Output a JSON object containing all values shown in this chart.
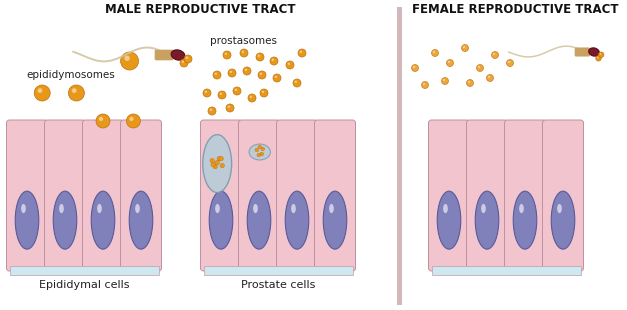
{
  "title_left": "MALE REPRODUCTIVE TRACT",
  "title_right": "FEMALE REPRODUCTIVE TRACT",
  "label_left": "Epididymal cells",
  "label_middle": "Prostate cells",
  "bg_color": "#ffffff",
  "cell_fill": "#f2c5ce",
  "cell_edge": "#c89aa5",
  "cell_base_fill": "#cce8f0",
  "nucleus_fill": "#8080bb",
  "nucleus_edge": "#5a5a99",
  "nucleus_highlight": "#ffffff",
  "orange_dot": "#e89818",
  "orange_dot_edge": "#c07010",
  "divider_color": "#d0b8bb",
  "sperm_body": "#d4c4a0",
  "sperm_body2": "#c8a870",
  "sperm_head": "#7a1a2a",
  "sperm_mid": "#c8a060",
  "vesicle_outline": "#7a9ab0",
  "vesicle_fill": "#b8ccd8",
  "cell_sep": "#c090a0"
}
